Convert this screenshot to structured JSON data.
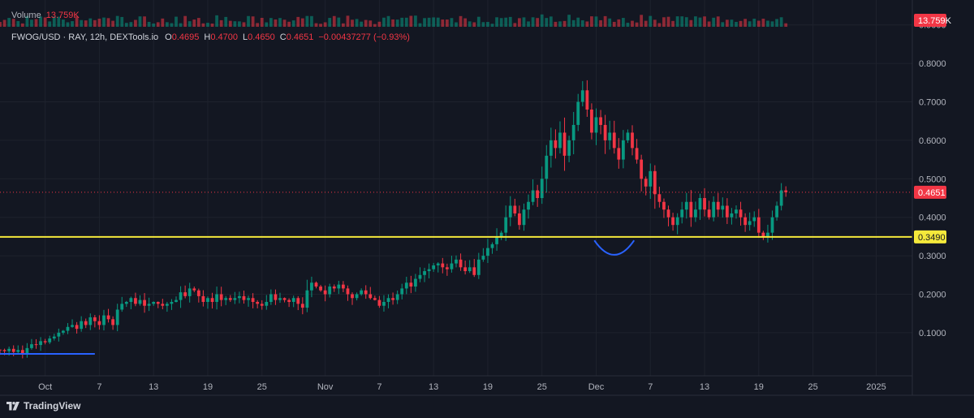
{
  "volume_legend": {
    "label": "Volume",
    "value": "13.759K"
  },
  "symbol_legend": {
    "title": "FWOG/USD · RAY, 12h, DEXTools.io",
    "ohlc": [
      {
        "k": "O",
        "v": "0.4695"
      },
      {
        "k": "H",
        "v": "0.4700"
      },
      {
        "k": "L",
        "v": "0.4650"
      },
      {
        "k": "C",
        "v": "0.4651"
      }
    ],
    "change": "−0.00437277 (−0.93%)"
  },
  "brand": "TradingView",
  "colors": {
    "background": "#131722",
    "grid": "#1e222d",
    "up": "#089981",
    "down": "#f23645",
    "support": "#f5e93b",
    "curve": "#2962ff",
    "text": "#b2b5be"
  },
  "chart_data": {
    "type": "candlestick",
    "title": "FWOG/USD · RAY, 12h, DEXTools.io",
    "ylim": [
      0.0,
      0.94
    ],
    "y_ticks": [
      "0.1000",
      "0.2000",
      "0.3000",
      "0.4000",
      "0.5000",
      "0.6000",
      "0.7000",
      "0.8000",
      "0.9000"
    ],
    "x_ticks": [
      {
        "label": "Oct",
        "day": 1
      },
      {
        "label": "7",
        "day": 7
      },
      {
        "label": "13",
        "day": 13
      },
      {
        "label": "19",
        "day": 19
      },
      {
        "label": "25",
        "day": 25
      },
      {
        "label": "Nov",
        "day": 32
      },
      {
        "label": "7",
        "day": 38
      },
      {
        "label": "13",
        "day": 44
      },
      {
        "label": "19",
        "day": 50
      },
      {
        "label": "25",
        "day": 56
      },
      {
        "label": "Dec",
        "day": 62
      },
      {
        "label": "7",
        "day": 68
      },
      {
        "label": "13",
        "day": 74
      },
      {
        "label": "19",
        "day": 80
      },
      {
        "label": "25",
        "day": 86
      },
      {
        "label": "2025",
        "day": 93
      }
    ],
    "x_range": [
      -4.0,
      97.0
    ],
    "start_day": -4.0,
    "step_days": 0.5,
    "closes": [
      0.055,
      0.052,
      0.058,
      0.05,
      0.055,
      0.045,
      0.06,
      0.07,
      0.068,
      0.078,
      0.075,
      0.085,
      0.09,
      0.1,
      0.105,
      0.115,
      0.12,
      0.11,
      0.13,
      0.12,
      0.14,
      0.13,
      0.12,
      0.145,
      0.135,
      0.12,
      0.16,
      0.175,
      0.18,
      0.19,
      0.175,
      0.185,
      0.17,
      0.175,
      0.18,
      0.175,
      0.17,
      0.175,
      0.18,
      0.185,
      0.205,
      0.195,
      0.215,
      0.21,
      0.195,
      0.18,
      0.19,
      0.18,
      0.2,
      0.185,
      0.19,
      0.185,
      0.19,
      0.195,
      0.185,
      0.19,
      0.18,
      0.175,
      0.17,
      0.18,
      0.2,
      0.185,
      0.19,
      0.185,
      0.18,
      0.19,
      0.175,
      0.165,
      0.21,
      0.23,
      0.22,
      0.21,
      0.2,
      0.22,
      0.215,
      0.225,
      0.215,
      0.2,
      0.19,
      0.2,
      0.21,
      0.2,
      0.19,
      0.185,
      0.17,
      0.18,
      0.19,
      0.185,
      0.2,
      0.215,
      0.23,
      0.22,
      0.24,
      0.25,
      0.26,
      0.265,
      0.275,
      0.28,
      0.27,
      0.265,
      0.28,
      0.29,
      0.27,
      0.26,
      0.27,
      0.25,
      0.29,
      0.3,
      0.32,
      0.33,
      0.35,
      0.36,
      0.4,
      0.43,
      0.41,
      0.38,
      0.42,
      0.44,
      0.47,
      0.45,
      0.5,
      0.56,
      0.6,
      0.58,
      0.62,
      0.56,
      0.6,
      0.64,
      0.7,
      0.73,
      0.68,
      0.62,
      0.66,
      0.64,
      0.6,
      0.62,
      0.58,
      0.55,
      0.6,
      0.62,
      0.58,
      0.55,
      0.5,
      0.48,
      0.52,
      0.46,
      0.44,
      0.42,
      0.4,
      0.38,
      0.4,
      0.42,
      0.44,
      0.4,
      0.42,
      0.45,
      0.42,
      0.4,
      0.44,
      0.42,
      0.43,
      0.4,
      0.41,
      0.42,
      0.4,
      0.38,
      0.39,
      0.4,
      0.36,
      0.35,
      0.36,
      0.4,
      0.43,
      0.47,
      0.4651
    ]
  }
}
